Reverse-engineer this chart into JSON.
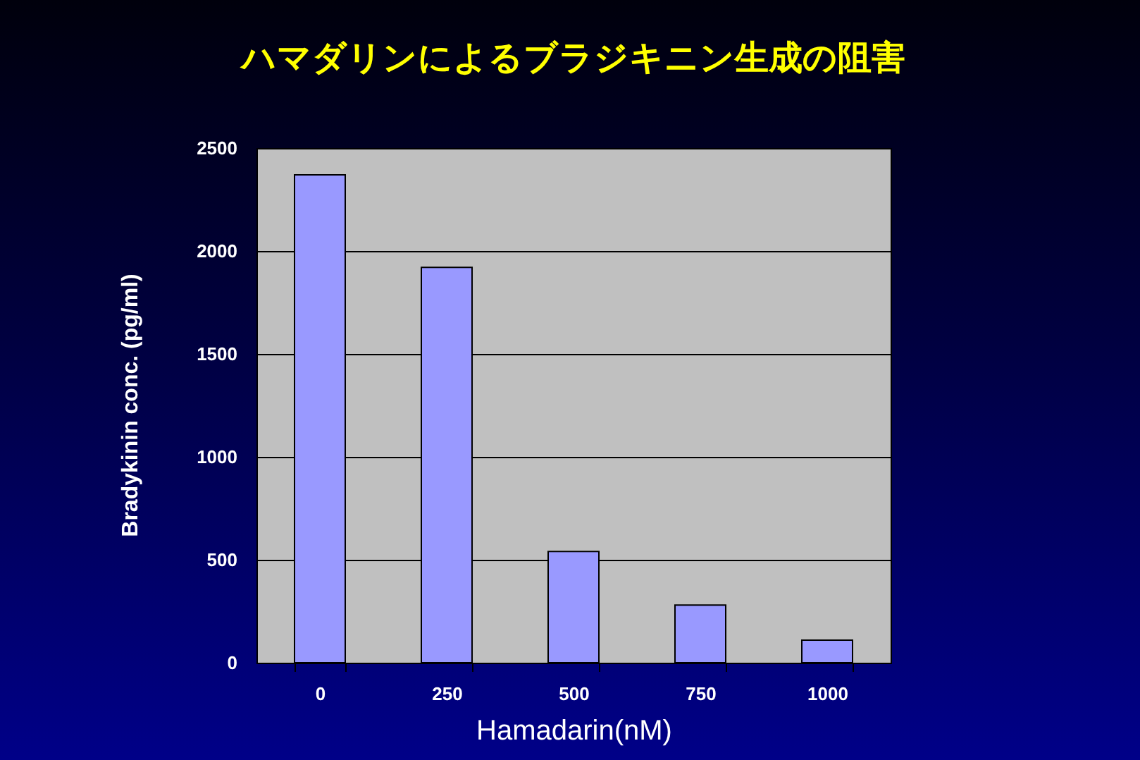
{
  "chart_data": {
    "type": "bar",
    "title": "ハマダリンによるブラジキニン生成の阻害",
    "xlabel": "Hamadarin(nM)",
    "ylabel": "Bradykinin conc. (pg/ml)",
    "categories": [
      "0",
      "250",
      "500",
      "750",
      "1000"
    ],
    "values": [
      2370,
      1920,
      540,
      280,
      110
    ],
    "color": "#9999ff",
    "ylim": [
      0,
      2500
    ],
    "yticks": [
      0,
      500,
      1000,
      1500,
      2000,
      2500
    ],
    "grid": "y"
  }
}
